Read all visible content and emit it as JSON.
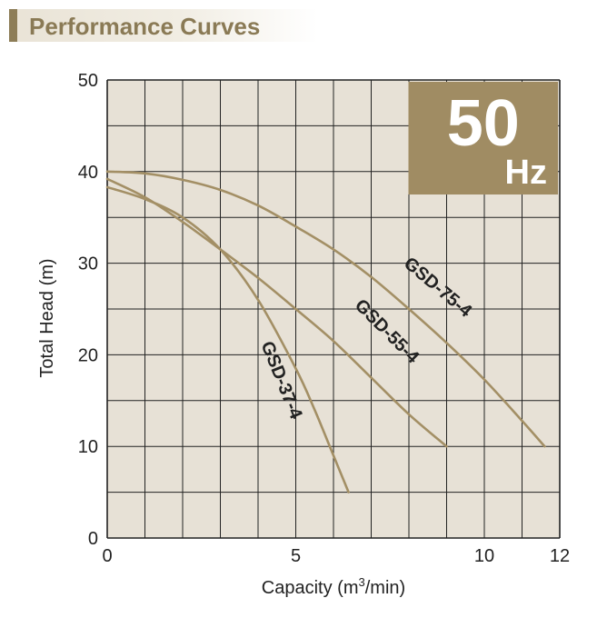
{
  "header": {
    "title": "Performance Curves"
  },
  "badge": {
    "value": "50",
    "unit": "Hz"
  },
  "colors": {
    "plot_bg": "#e7e1d6",
    "grid": "#222222",
    "curve": "#a38f65",
    "badge_bg": "#a08c63",
    "header_text": "#8a7a55"
  },
  "chart_data": {
    "type": "line",
    "title": "Performance Curves",
    "xlabel_prefix": "Capacity (m",
    "xlabel_sup": "3",
    "xlabel_suffix": "/min)",
    "ylabel": "Total Head (m)",
    "xlim": [
      0,
      12
    ],
    "ylim": [
      0,
      50
    ],
    "x_grid_step": 1,
    "y_grid_step": 5,
    "x_ticks": [
      {
        "value": 0,
        "label": "0"
      },
      {
        "value": 5,
        "label": "5"
      },
      {
        "value": 10,
        "label": "10"
      },
      {
        "value": 12,
        "label": "12"
      }
    ],
    "y_ticks": [
      {
        "value": 0,
        "label": "0"
      },
      {
        "value": 10,
        "label": "10"
      },
      {
        "value": 20,
        "label": "20"
      },
      {
        "value": 30,
        "label": "30"
      },
      {
        "value": 40,
        "label": "40"
      },
      {
        "value": 50,
        "label": "50"
      }
    ],
    "series": [
      {
        "name": "GSD-37-4",
        "x": [
          0,
          1,
          2,
          3,
          4,
          5,
          5.5,
          6,
          6.4
        ],
        "y": [
          38.3,
          37,
          35,
          31.5,
          26,
          18.5,
          14,
          9,
          5
        ],
        "label_at": [
          4.6,
          17.2
        ],
        "label_angle": 68
      },
      {
        "name": "GSD-55-4",
        "x": [
          0,
          1,
          2,
          3,
          4,
          5,
          6,
          7,
          8,
          9
        ],
        "y": [
          39.2,
          37.2,
          34.5,
          31.5,
          28.4,
          25,
          21.5,
          17.5,
          13.5,
          10
        ],
        "label_at": [
          7.4,
          22.5
        ],
        "label_angle": 45
      },
      {
        "name": "GSD-75-4",
        "x": [
          0,
          1,
          2,
          3,
          4,
          5,
          6,
          7,
          8,
          9,
          10,
          11,
          11.6
        ],
        "y": [
          40,
          39.8,
          39.1,
          38,
          36.3,
          34,
          31.5,
          28.5,
          25,
          21.3,
          17.3,
          12.8,
          10
        ],
        "label_at": [
          8.75,
          27.3
        ],
        "label_angle": 40
      }
    ]
  }
}
